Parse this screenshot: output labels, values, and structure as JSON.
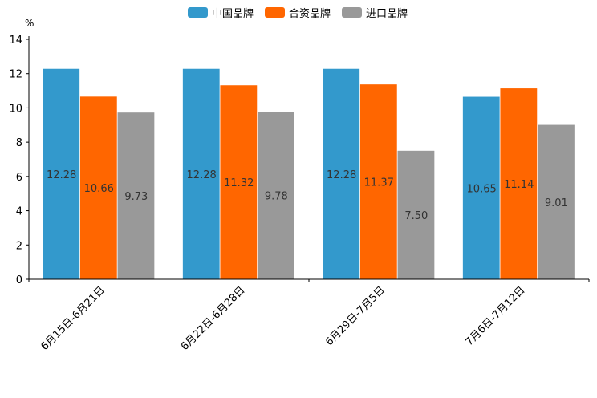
{
  "chart_data": {
    "type": "bar",
    "title": "",
    "xlabel": "",
    "ylabel": "%",
    "ylim": [
      0,
      14
    ],
    "yticks": [
      0,
      2,
      4,
      6,
      8,
      10,
      12,
      14
    ],
    "legend_position": "top-center",
    "categories": [
      "6月15日-6月21日",
      "6月22日-6月28日",
      "6月29日-7月5日",
      "7月6日-7月12日"
    ],
    "series": [
      {
        "name": "中国品牌",
        "color": "#3399cc",
        "values": [
          12.28,
          12.28,
          12.28,
          10.65
        ],
        "labels": [
          "12.28",
          "12.28",
          "12.28",
          "10.65"
        ]
      },
      {
        "name": "合资品牌",
        "color": "#ff6600",
        "values": [
          10.66,
          11.32,
          11.37,
          11.14
        ],
        "labels": [
          "10.66",
          "11.32",
          "11.37",
          "11.14"
        ]
      },
      {
        "name": "进口品牌",
        "color": "#999999",
        "values": [
          9.73,
          9.78,
          7.5,
          9.01
        ],
        "labels": [
          "9.73",
          "9.78",
          "7.50",
          "9.01"
        ]
      }
    ]
  }
}
